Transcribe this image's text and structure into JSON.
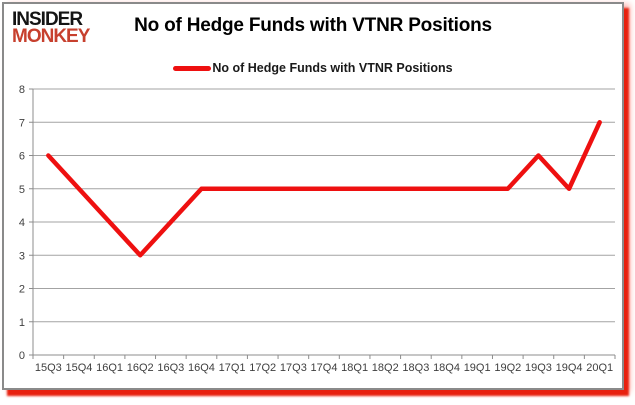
{
  "logo": {
    "line1": "INSIDER",
    "line2": "MONKEY",
    "line2_color": "#c7402e"
  },
  "header": {
    "title": "No of Hedge Funds with VTNR Positions"
  },
  "legend": {
    "label": "No of Hedge Funds with VTNR Positions"
  },
  "colors": {
    "line": "#ee1010",
    "grid": "#a3a3a3",
    "axis": "#8c8c8c",
    "tick_text": "#3f3f3f",
    "card_border": "#8a8a8a",
    "card_shadow": "#e8200e"
  },
  "chart_data": {
    "type": "line",
    "title": "No of Hedge Funds with VTNR Positions",
    "legend_entries": [
      "No of Hedge Funds with VTNR Positions"
    ],
    "legend_position": "top",
    "grid": "horizontal",
    "xlabel": "",
    "ylabel": "",
    "categories": [
      "15Q3",
      "15Q4",
      "16Q1",
      "16Q2",
      "16Q3",
      "16Q4",
      "17Q1",
      "17Q2",
      "17Q3",
      "17Q4",
      "18Q1",
      "18Q2",
      "18Q3",
      "18Q4",
      "19Q1",
      "19Q2",
      "19Q3",
      "19Q4",
      "20Q1"
    ],
    "values": [
      6,
      5,
      4,
      3,
      4,
      5,
      5,
      5,
      5,
      5,
      5,
      5,
      5,
      5,
      5,
      5,
      6,
      5,
      7
    ],
    "ylim": [
      0,
      8
    ],
    "yticks": [
      0,
      1,
      2,
      3,
      4,
      5,
      6,
      7,
      8
    ],
    "line_color": "#ee1010",
    "grid_color": "#a3a3a3",
    "axis_color": "#8c8c8c"
  }
}
